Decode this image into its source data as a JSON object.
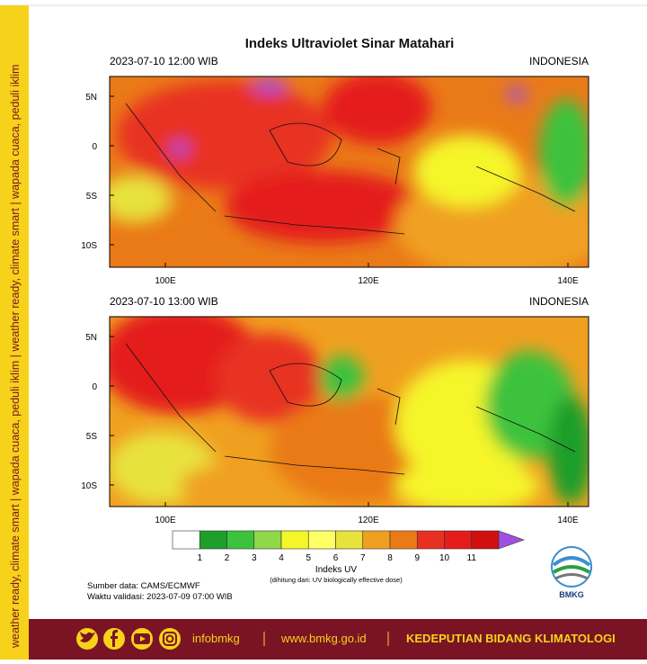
{
  "title": "Indeks Ultraviolet Sinar Matahari",
  "panels": [
    {
      "time": "2023-07-10  12:00 WIB",
      "region": "INDONESIA",
      "lat_labels": [
        "5N",
        "0",
        "5S",
        "10S"
      ],
      "lon_labels": [
        "100E",
        "120E",
        "140E"
      ]
    },
    {
      "time": "2023-07-10  13:00 WIB",
      "region": "INDONESIA",
      "lat_labels": [
        "5N",
        "0",
        "5S",
        "10S"
      ],
      "lon_labels": [
        "100E",
        "120E",
        "140E"
      ]
    }
  ],
  "colorbar": {
    "levels": [
      1,
      2,
      3,
      4,
      5,
      6,
      7,
      8,
      9,
      10,
      11
    ],
    "colors": [
      "#ffffff",
      "#1f9e2a",
      "#3cc23c",
      "#8ed84a",
      "#f5f52a",
      "#ffff66",
      "#e8e23c",
      "#f0a020",
      "#ea7a18",
      "#e83020",
      "#e41c1c",
      "#d01010",
      "#a050e0"
    ],
    "title": "Indeks UV",
    "note": "(dihitung dari: UV biologically effective dose)"
  },
  "source": "Sumber data: CAMS/ECMWF",
  "validity": "Waktu validasi: 2023-07-09 07:00 WIB",
  "logo": "BMKG",
  "sidebar": "weather ready, climate smart  |  wapada cuaca, peduli iklim  |  weather ready, climate smart  |  wapada cuaca, peduli iklim",
  "footer": {
    "handle": "infobmkg",
    "website": "www.bmkg.go.id",
    "department": "KEDEPUTIAN BIDANG KLIMATOLOGI"
  }
}
